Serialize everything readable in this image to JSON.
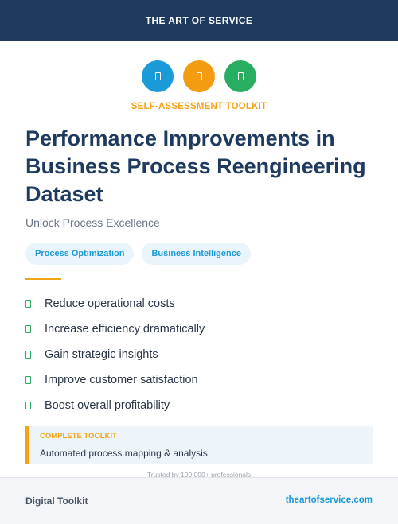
{
  "header": {
    "brand": "THE ART OF SERVICE"
  },
  "icons": [
    {
      "name": "document-icon",
      "color": "#1a9ad6"
    },
    {
      "name": "document-icon",
      "color": "#f39c12"
    },
    {
      "name": "document-icon",
      "color": "#27ae60"
    }
  ],
  "eyebrow": "SELF-ASSESSMENT TOOLKIT",
  "title": "Performance Improvements in Business Process Reengineering Dataset",
  "subtitle": "Unlock Process Excellence",
  "tags": [
    "Process Optimization",
    "Business Intelligence"
  ],
  "benefits": [
    "Reduce operational costs",
    "Increase efficiency dramatically",
    "Gain strategic insights",
    "Improve customer satisfaction",
    "Boost overall profitability"
  ],
  "callout": {
    "label": "COMPLETE TOOLKIT",
    "text": "Automated process mapping & analysis"
  },
  "trusted": "Trusted by 100,000+ professionals",
  "footer": {
    "left": "Digital Toolkit",
    "right": "theartofservice.com"
  },
  "colors": {
    "navy": "#1e3a5f",
    "accent_orange": "#f2a31b",
    "link_blue": "#1a9ad6",
    "check_green": "#27ae60"
  }
}
